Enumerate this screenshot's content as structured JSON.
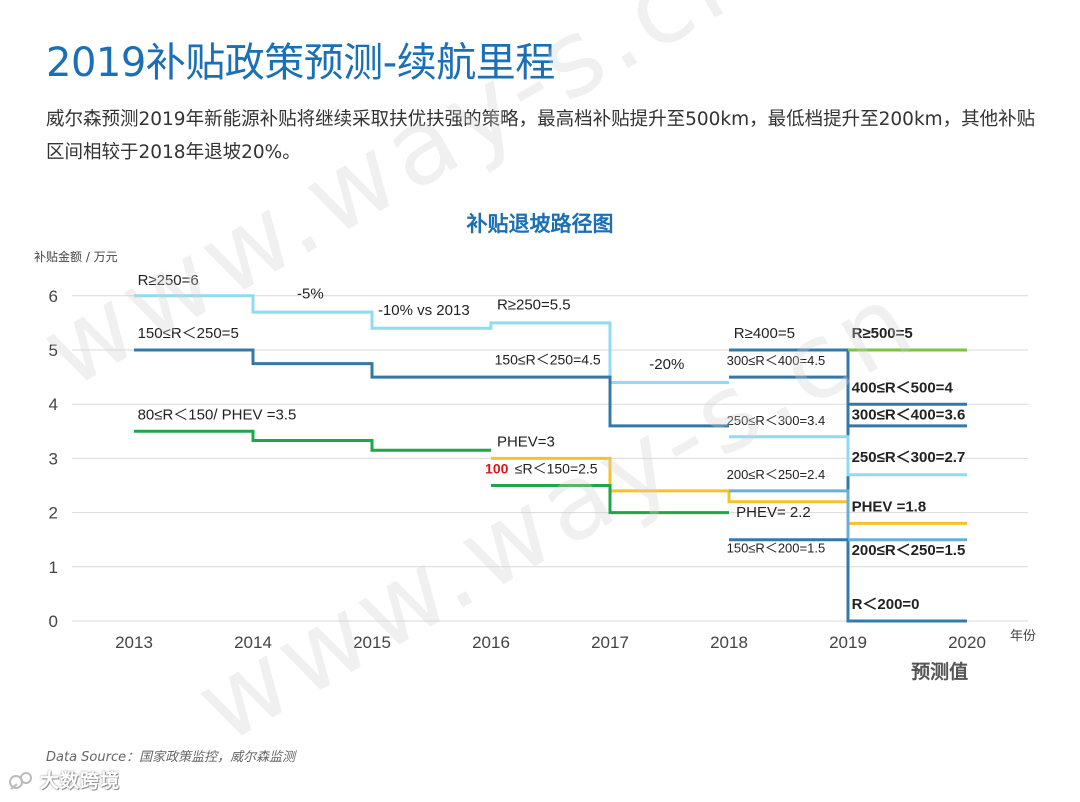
{
  "header": {
    "title": "2019补贴政策预测-续航里程",
    "intro": "威尔森预测2019年新能源补贴将继续采取扶优扶强的策略，最高档补贴提升至500km，最低档提升至200km，其他补贴区间相较于2018年退坡20%。"
  },
  "footer": {
    "source": "Data Source：国家政策监控，威尔森监测",
    "logo_text": "大数跨境"
  },
  "watermark": {
    "text": "www.way-s.cn"
  },
  "colors": {
    "title": "#1a6fb5",
    "grid": "#d9d9d9",
    "light_blue": "#8fdcf0",
    "dark_blue": "#3478a8",
    "green": "#1fa64a",
    "yellow": "#f6c22c",
    "light_steel": "#6aaed6",
    "lime": "#7dc242",
    "highlight_red": "#e0151b"
  },
  "chart_data": {
    "type": "line",
    "step": true,
    "title": "补贴退坡路径图",
    "ylabel": "补贴金额 / 万元",
    "xlabel": "年份",
    "x_ticks": [
      "2013",
      "2014",
      "2015",
      "2016",
      "2017",
      "2018",
      "2019",
      "2020"
    ],
    "y_ticks": [
      "0",
      "1",
      "2",
      "3",
      "4",
      "5",
      "6"
    ],
    "ylim": [
      0,
      6.5
    ],
    "xlim": [
      2013,
      2020
    ],
    "x_annotation": "预测值",
    "grid": true,
    "series": [
      {
        "key": "r250",
        "color": "#8fdcf0",
        "points": [
          [
            2013,
            6
          ],
          [
            2014,
            6
          ],
          [
            2014,
            5.7
          ],
          [
            2015,
            5.7
          ],
          [
            2015,
            5.4
          ],
          [
            2016,
            5.4
          ],
          [
            2016,
            5.5
          ],
          [
            2017,
            5.5
          ],
          [
            2017,
            4.4
          ],
          [
            2018,
            4.4
          ]
        ]
      },
      {
        "key": "r150_250",
        "color": "#3478a8",
        "points": [
          [
            2013,
            5
          ],
          [
            2014,
            5
          ],
          [
            2014,
            4.75
          ],
          [
            2015,
            4.75
          ],
          [
            2015,
            4.5
          ],
          [
            2016,
            4.5
          ],
          [
            2016,
            4.5
          ],
          [
            2017,
            4.5
          ],
          [
            2017,
            3.6
          ],
          [
            2018,
            3.6
          ]
        ]
      },
      {
        "key": "r80_150",
        "color": "#1fa64a",
        "points": [
          [
            2013,
            3.5
          ],
          [
            2014,
            3.5
          ],
          [
            2014,
            3.33
          ],
          [
            2015,
            3.33
          ],
          [
            2015,
            3.15
          ],
          [
            2016,
            3.15
          ]
        ]
      },
      {
        "key": "phev",
        "color": "#f6c22c",
        "points": [
          [
            2016,
            3
          ],
          [
            2017,
            3
          ],
          [
            2017,
            2.4
          ],
          [
            2018,
            2.4
          ],
          [
            2018,
            2.2
          ],
          [
            2019,
            2.2
          ],
          [
            2019,
            1.8
          ],
          [
            2020,
            1.8
          ]
        ]
      },
      {
        "key": "r100_150",
        "color": "#1fa64a",
        "points": [
          [
            2016,
            2.5
          ],
          [
            2017,
            2.5
          ],
          [
            2017,
            2
          ],
          [
            2018,
            2
          ]
        ]
      },
      {
        "key": "r400",
        "color": "#3478a8",
        "points": [
          [
            2018,
            5
          ],
          [
            2019,
            5
          ],
          [
            2019,
            0
          ],
          [
            2020,
            0
          ]
        ]
      },
      {
        "key": "r300_400",
        "color": "#3478a8",
        "points": [
          [
            2018,
            4.5
          ],
          [
            2019,
            4.5
          ],
          [
            2019,
            3.6
          ],
          [
            2020,
            3.6
          ]
        ]
      },
      {
        "key": "r250_300",
        "color": "#8fdcf0",
        "points": [
          [
            2018,
            3.4
          ],
          [
            2019,
            3.4
          ],
          [
            2019,
            2.7
          ],
          [
            2020,
            2.7
          ]
        ]
      },
      {
        "key": "r200_250",
        "color": "#6aaed6",
        "points": [
          [
            2018,
            2.4
          ],
          [
            2019,
            2.4
          ],
          [
            2019,
            1.5
          ],
          [
            2020,
            1.5
          ]
        ]
      },
      {
        "key": "r150_200",
        "color": "#3478a8",
        "points": [
          [
            2018,
            1.5
          ],
          [
            2019,
            1.5
          ]
        ]
      },
      {
        "key": "r500",
        "color": "#7dc242",
        "points": [
          [
            2019,
            5
          ],
          [
            2020,
            5
          ]
        ]
      },
      {
        "key": "r400_500",
        "color": "#3478a8",
        "points": [
          [
            2019,
            4
          ],
          [
            2020,
            4
          ]
        ]
      }
    ],
    "annotations": [
      {
        "text": "R≥250=6",
        "x": 2013.03,
        "y": 6.2,
        "bold": false,
        "size": 15
      },
      {
        "text": "-5%",
        "x": 2014.37,
        "y": 5.95,
        "bold": false,
        "size": 15
      },
      {
        "text": "-10% vs 2013",
        "x": 2015.05,
        "y": 5.65,
        "bold": false,
        "size": 15
      },
      {
        "text": "R≥250=5.5",
        "x": 2016.05,
        "y": 5.75,
        "bold": false,
        "size": 15
      },
      {
        "text": "150≤R＜250=5",
        "x": 2013.03,
        "y": 5.22,
        "bold": false,
        "size": 15
      },
      {
        "text": "150≤R＜250=4.5",
        "x": 2016.03,
        "y": 4.73,
        "bold": false,
        "size": 14
      },
      {
        "text": "-20%",
        "x": 2017.33,
        "y": 4.65,
        "bold": false,
        "size": 15
      },
      {
        "text": "80≤R＜150/ PHEV =3.5",
        "x": 2013.03,
        "y": 3.72,
        "bold": false,
        "size": 15
      },
      {
        "text": "PHEV=3",
        "x": 2016.05,
        "y": 3.22,
        "bold": false,
        "size": 15
      },
      {
        "text": "≤R＜150=2.5",
        "x": 2016.2,
        "y": 2.72,
        "bold": false,
        "size": 14
      },
      {
        "text": "100",
        "x": 2015.95,
        "y": 2.72,
        "bold": true,
        "size": 14,
        "color": "#e0151b"
      },
      {
        "text": "R≥400=5",
        "x": 2018.04,
        "y": 5.22,
        "bold": false,
        "size": 15
      },
      {
        "text": "300≤R＜400=4.5",
        "x": 2017.98,
        "y": 4.72,
        "bold": false,
        "size": 13
      },
      {
        "text": "250≤R＜300=3.4",
        "x": 2017.98,
        "y": 3.62,
        "bold": false,
        "size": 13
      },
      {
        "text": "200≤R＜250=2.4",
        "x": 2017.98,
        "y": 2.62,
        "bold": false,
        "size": 13
      },
      {
        "text": "PHEV= 2.2",
        "x": 2018.06,
        "y": 1.92,
        "bold": false,
        "size": 15
      },
      {
        "text": "150≤R＜200=1.5",
        "x": 2017.98,
        "y": 1.26,
        "bold": false,
        "size": 13
      },
      {
        "text": "R≥500=5",
        "x": 2019.03,
        "y": 5.22,
        "bold": true,
        "size": 15
      },
      {
        "text": "400≤R＜500=4",
        "x": 2019.03,
        "y": 4.22,
        "bold": true,
        "size": 15
      },
      {
        "text": "300≤R＜400=3.6",
        "x": 2019.03,
        "y": 3.72,
        "bold": true,
        "size": 15
      },
      {
        "text": "250≤R＜300=2.7",
        "x": 2019.03,
        "y": 2.93,
        "bold": true,
        "size": 15
      },
      {
        "text": "PHEV =1.8",
        "x": 2019.03,
        "y": 2.02,
        "bold": true,
        "size": 15
      },
      {
        "text": "200≤R＜250=1.5",
        "x": 2019.03,
        "y": 1.22,
        "bold": true,
        "size": 15
      },
      {
        "text": "R＜200=0",
        "x": 2019.03,
        "y": 0.22,
        "bold": true,
        "size": 15
      }
    ]
  }
}
